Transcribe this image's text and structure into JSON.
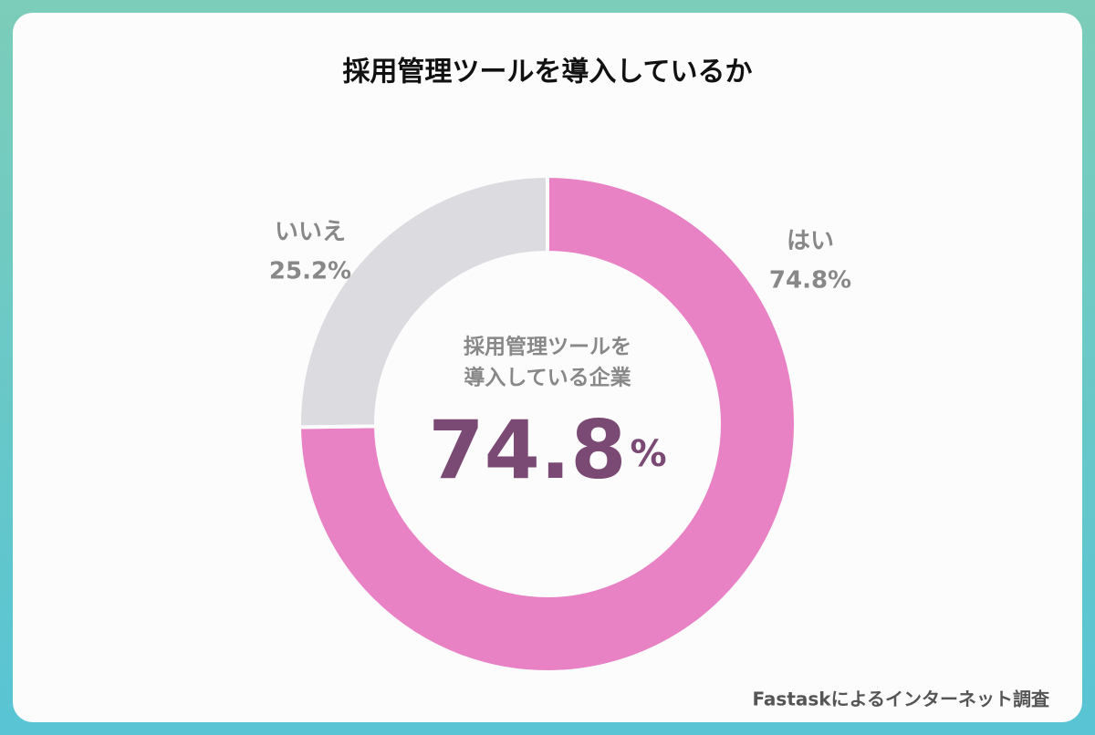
{
  "chart_data": {
    "type": "pie",
    "title": "採用管理ツールを導入しているか",
    "categories": [
      "はい",
      "いいえ"
    ],
    "values": [
      74.8,
      25.2
    ],
    "value_labels": [
      "74.8%",
      "25.2%"
    ],
    "colors": [
      "#e882c4",
      "#dcdbdf"
    ],
    "center_text": [
      "採用管理ツールを",
      "導入している企業"
    ],
    "center_unit": "%",
    "source": "Fastaskによるインターネット調査"
  }
}
